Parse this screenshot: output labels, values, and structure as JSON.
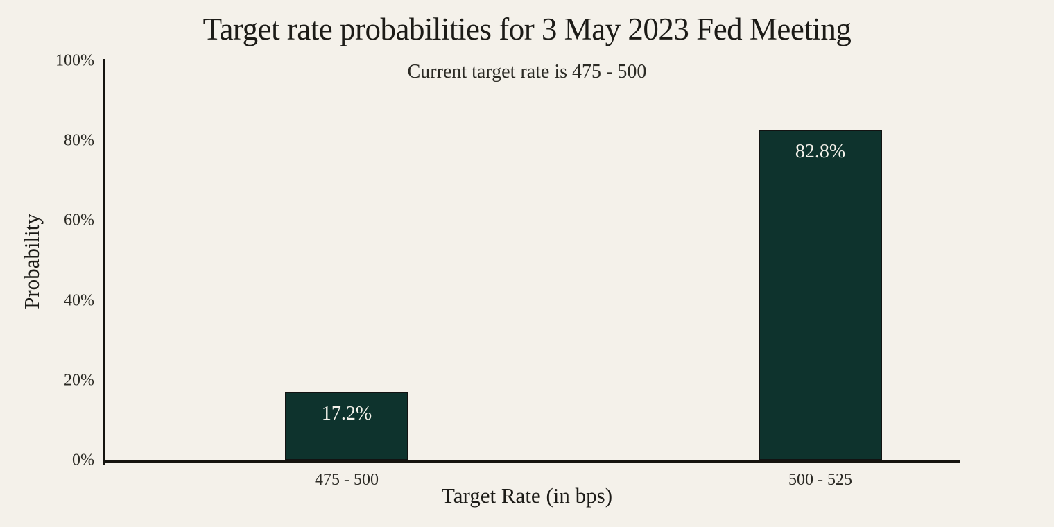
{
  "chart_data": {
    "type": "bar",
    "title": "Target rate probabilities for 3 May 2023 Fed Meeting",
    "subtitle": "Current target rate is 475 - 500",
    "xlabel": "Target Rate (in bps)",
    "ylabel": "Probability",
    "categories": [
      "475 - 500",
      "500 - 525"
    ],
    "values": [
      17.2,
      82.8
    ],
    "bar_labels": [
      "17.2%",
      "82.8%"
    ],
    "ylim": [
      0,
      100
    ],
    "yticks": [
      "0%",
      "20%",
      "40%",
      "60%",
      "80%",
      "100%"
    ],
    "grid": false,
    "legend_position": "none",
    "colors": {
      "background": "#f4f1ea",
      "bar_fill": "#0e332d",
      "bar_border": "#121312",
      "axis": "#15140f",
      "title_text": "#1c1b17",
      "tick_text": "#2b2a24",
      "bar_label_text": "#f5f2eb"
    }
  }
}
